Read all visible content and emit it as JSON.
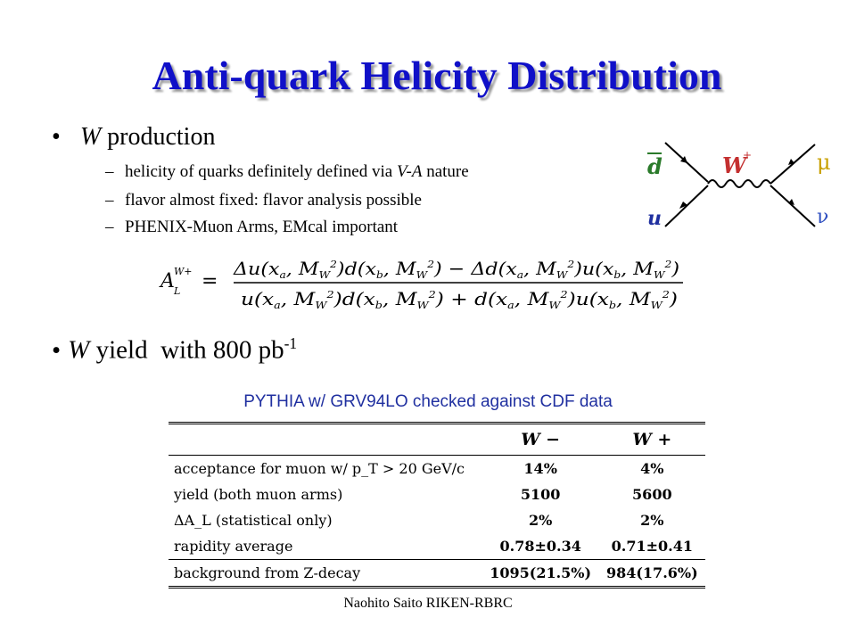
{
  "title": "Anti-quark Helicity Distribution",
  "bullet1": {
    "var": "W",
    "text": " production",
    "subs": [
      {
        "pre": "helicity of quarks definitely defined via ",
        "italic": "V-A",
        "post": " nature"
      },
      {
        "pre": "flavor almost fixed: flavor analysis possible",
        "italic": "",
        "post": ""
      },
      {
        "pre": "PHENIX-Muon Arms, EMcal important",
        "italic": "",
        "post": ""
      }
    ]
  },
  "equation": {
    "lhs": "A",
    "lhs_sub": "L",
    "lhs_sup": "W+",
    "numerator": "Δu(x_a, M_W^2)d̄(x_b, M_W^2) − Δd̄(x_a, M_W^2)u(x_b, M_W^2)",
    "denominator": "u(x_a, M_W^2)d̄(x_b, M_W^2) + d̄(x_a, M_W^2)u(x_b, M_W^2)"
  },
  "feynman": {
    "in_top": "d",
    "in_bottom": "u",
    "boson": "W",
    "boson_sup": "+",
    "out_top": "μ",
    "out_bottom": "ν",
    "colors": {
      "quark": "#2a7a2a",
      "boson": "#c43030",
      "lepton": "#c8a000",
      "nu": "#3050c0"
    }
  },
  "bullet2": {
    "var": "W",
    "text": " yield  with 800 pb",
    "sup": "-1"
  },
  "caption": "PYTHIA w/ GRV94LO checked against CDF data",
  "table": {
    "headers": [
      "",
      "W −",
      "W +"
    ],
    "rows": [
      {
        "label": "acceptance for muon w/ p_T > 20 GeV/c",
        "wm": "14%",
        "wp": "4%"
      },
      {
        "label": "yield (both muon arms)",
        "wm": "5100",
        "wp": "5600"
      },
      {
        "label": "ΔA_L (statistical only)",
        "wm": "2%",
        "wp": "2%"
      },
      {
        "label": "rapidity average",
        "wm": "0.78±0.34",
        "wp": "0.71±0.41"
      },
      {
        "label": "background from Z-decay",
        "wm": "1095(21.5%)",
        "wp": "984(17.6%)"
      }
    ]
  },
  "footer": "Naohito Saito RIKEN-RBRC",
  "colors": {
    "title": "#1010c8",
    "caption": "#2030a0"
  }
}
